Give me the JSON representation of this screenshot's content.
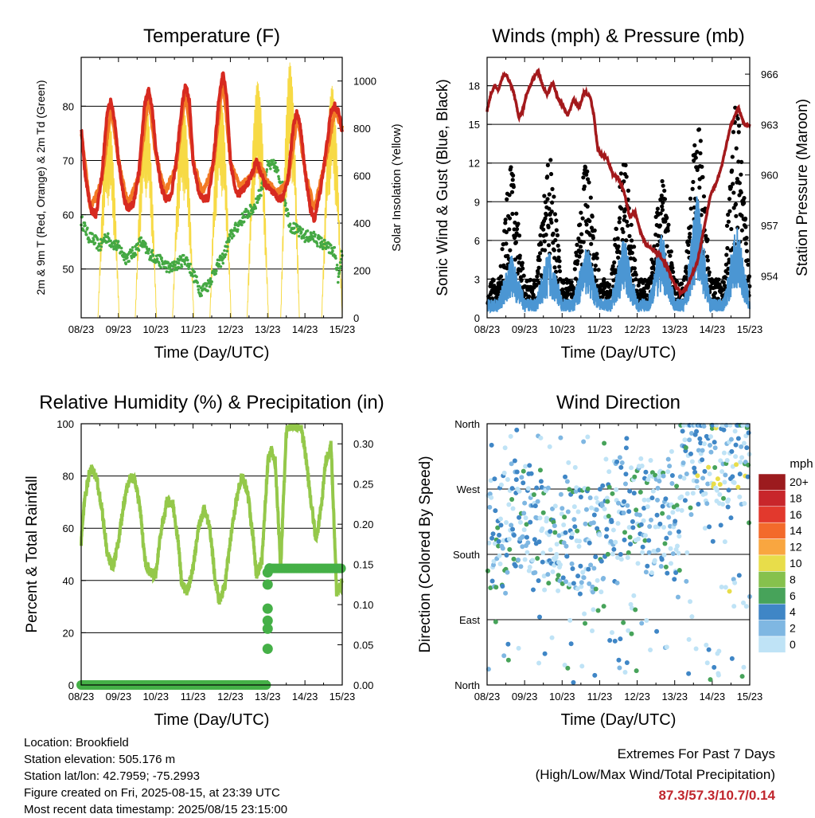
{
  "x_tick_labels": [
    "08/23",
    "09/23",
    "10/23",
    "11/23",
    "12/23",
    "13/23",
    "14/23",
    "15/23"
  ],
  "colors": {
    "temp_red": "#d72a20",
    "temp_orange": "#f27a25",
    "dewpoint_green": "#44a843",
    "solar_yellow": "#f7da45",
    "wind_blue": "#4b96d3",
    "gust_black": "#000000",
    "pressure_maroon": "#a3191c",
    "rh_green": "#94c84a",
    "precip_green": "#45b047"
  },
  "charts": [
    {
      "id": "temperature",
      "type": "line",
      "title": "Temperature (F)",
      "xlabel": "Time (Day/UTC)",
      "ylabel": "2m & 9m T (Red, Orange) & 2m Td (Green)",
      "y2label": "Solar Insolation (Yellow)",
      "ylim": [
        41,
        89
      ],
      "y_ticks": [
        "50",
        "60",
        "70",
        "80"
      ],
      "y2lim": [
        0,
        1100
      ],
      "y2_ticks": [
        "0",
        "200",
        "400",
        "600",
        "800",
        "1000"
      ],
      "grid": true,
      "chart_data": {
        "type": "line",
        "x_unit": "days since 08/23 00 UTC",
        "series": [
          {
            "key": "t2m",
            "x": [
              0,
              0.1,
              0.25,
              0.4,
              0.55,
              0.7,
              0.8,
              0.9,
              1.0,
              1.15,
              1.25,
              1.4,
              1.55,
              1.7,
              1.8,
              1.9,
              2.0,
              2.15,
              2.25,
              2.4,
              2.55,
              2.7,
              2.8,
              2.9,
              3.0,
              3.15,
              3.25,
              3.4,
              3.55,
              3.7,
              3.8,
              3.9,
              4.0,
              4.15,
              4.25,
              4.4,
              4.55,
              4.7,
              4.8,
              4.9,
              5.0,
              5.15,
              5.25,
              5.4,
              5.55,
              5.7,
              5.8,
              5.9,
              6.0,
              6.15,
              6.25,
              6.4,
              6.55,
              6.7,
              6.8,
              6.9,
              7.0
            ],
            "y": [
              76,
              68,
              61,
              60,
              67,
              79,
              81,
              77,
              70,
              63,
              61,
              62,
              68,
              80,
              83,
              80,
              72,
              65,
              63,
              63,
              70,
              80,
              84,
              81,
              70,
              64,
              63,
              63,
              70,
              82,
              86,
              82,
              70,
              64,
              64,
              65,
              67,
              70,
              68,
              66,
              65,
              64,
              63,
              63,
              67,
              77,
              79,
              75,
              68,
              61,
              59,
              64,
              71,
              79,
              80,
              79,
              75
            ]
          },
          {
            "key": "t9m",
            "x": [
              0,
              0.25,
              0.55,
              0.8,
              1.0,
              1.25,
              1.55,
              1.8,
              2.0,
              2.25,
              2.55,
              2.8,
              3.0,
              3.25,
              3.55,
              3.8,
              4.0,
              4.25,
              4.55,
              4.8,
              5.0,
              5.25,
              5.55,
              5.8,
              6.0,
              6.25,
              6.55,
              6.8,
              7.0
            ],
            "y": [
              75,
              61,
              66,
              80,
              70,
              62,
              67,
              82,
              71,
              64,
              69,
              83,
              70,
              64,
              69,
              85,
              70,
              65,
              67,
              69,
              66,
              64,
              66,
              78,
              68,
              61,
              70,
              79,
              76
            ]
          },
          {
            "key": "td2m",
            "x": [
              0,
              0.2,
              0.4,
              0.5,
              0.65,
              0.8,
              1.0,
              1.2,
              1.4,
              1.6,
              1.8,
              2.0,
              2.2,
              2.4,
              2.6,
              2.8,
              3.0,
              3.2,
              3.4,
              3.6,
              3.8,
              4.0,
              4.2,
              4.4,
              4.6,
              4.8,
              5.0,
              5.2,
              5.4,
              5.6,
              5.8,
              6.0,
              6.2,
              6.4,
              6.6,
              6.8,
              6.9,
              7.0
            ],
            "y": [
              59,
              56,
              55,
              54,
              56,
              55,
              54,
              52,
              53,
              55,
              53,
              52,
              51,
              50,
              51,
              52,
              49,
              46,
              47,
              50,
              52,
              56,
              58,
              60,
              61,
              64,
              69,
              69,
              65,
              58,
              57,
              56,
              56,
              55,
              54,
              53,
              48,
              53
            ]
          },
          {
            "key": "solar",
            "axis": "y2",
            "peaks": [
              {
                "rise": 0.45,
                "noon": 0.72,
                "set": 1.02,
                "peak": 860
              },
              {
                "rise": 1.45,
                "noon": 1.72,
                "set": 2.02,
                "peak": 920
              },
              {
                "rise": 2.45,
                "noon": 2.72,
                "set": 3.02,
                "peak": 900
              },
              {
                "rise": 3.45,
                "noon": 3.72,
                "set": 4.02,
                "peak": 940
              },
              {
                "rise": 4.45,
                "noon": 4.72,
                "set": 5.02,
                "peak": 1000
              },
              {
                "rise": 5.35,
                "noon": 5.55,
                "set": 5.85,
                "peak": 1080
              },
              {
                "rise": 6.45,
                "noon": 6.72,
                "set": 7.0,
                "peak": 980
              }
            ]
          }
        ]
      }
    },
    {
      "id": "winds",
      "type": "scatter",
      "title": "Winds (mph) & Pressure (mb)",
      "xlabel": "Time (Day/UTC)",
      "ylabel": "Sonic Wind & Gust (Blue, Black)",
      "y2label": "Station Pressure (Maroon)",
      "ylim": [
        0,
        20.2
      ],
      "y_ticks": [
        "0",
        "3",
        "6",
        "9",
        "12",
        "15",
        "18"
      ],
      "y2lim": [
        951.5,
        967.0
      ],
      "y2_ticks": [
        "954",
        "957",
        "960",
        "963",
        "966"
      ],
      "grid": true,
      "chart_data": {
        "type": "scatter",
        "series": [
          {
            "key": "pressure",
            "axis": "y2",
            "x": [
              0,
              0.1,
              0.2,
              0.3,
              0.45,
              0.55,
              0.7,
              0.85,
              0.95,
              1.05,
              1.2,
              1.35,
              1.5,
              1.6,
              1.75,
              1.9,
              2.0,
              2.15,
              2.3,
              2.45,
              2.6,
              2.75,
              2.85,
              2.95,
              3.05,
              3.2,
              3.35,
              3.5,
              3.65,
              3.8,
              3.95,
              4.1,
              4.25,
              4.4,
              4.6,
              4.8,
              5.0,
              5.15,
              5.3,
              5.45,
              5.6,
              5.8,
              5.95,
              6.1,
              6.25,
              6.4,
              6.5,
              6.6,
              6.7,
              6.85,
              7.0
            ],
            "y": [
              963.8,
              964.8,
              965.3,
              965.1,
              966.0,
              965.8,
              965.0,
              963.4,
              963.8,
              964.8,
              965.6,
              966.2,
              965.2,
              964.8,
              965.5,
              964.5,
              964.2,
              963.5,
              964.5,
              964.0,
              965.0,
              964.6,
              963.5,
              961.5,
              961.2,
              961.0,
              960.0,
              959.8,
              959.0,
              957.5,
              957.8,
              956.5,
              955.8,
              955.6,
              955.2,
              954.5,
              953.5,
              953.0,
              953.2,
              954.0,
              954.8,
              957.0,
              958.8,
              959.5,
              960.5,
              962.0,
              963.0,
              963.5,
              964.0,
              963.0,
              963.0
            ]
          },
          {
            "key": "wind",
            "daily_peak_x": [
              0.65,
              1.65,
              2.65,
              3.65,
              4.65,
              5.6,
              6.65
            ],
            "daily_peak_y": [
              5.0,
              5.5,
              6.0,
              6.5,
              7.0,
              10.0,
              7.5
            ],
            "base": 1.5
          },
          {
            "key": "gust",
            "daily_peak_x": [
              0.65,
              1.65,
              2.65,
              3.65,
              4.65,
              5.6,
              6.65
            ],
            "daily_peak_y": [
              12.7,
              13.8,
              13.5,
              13.6,
              12.0,
              17.8,
              18.2
            ],
            "base": 3.0
          }
        ]
      }
    },
    {
      "id": "rh",
      "type": "line",
      "title": "Relative Humidity (%) & Precipitation (in)",
      "xlabel": "Time (Day/UTC)",
      "ylabel": "Percent & Total Rainfall",
      "ylim": [
        0,
        100
      ],
      "y_ticks": [
        "0",
        "20",
        "40",
        "60",
        "80",
        "100"
      ],
      "y2lim": [
        0,
        0.325
      ],
      "y2_ticks": [
        "0.00",
        "0.05",
        "0.10",
        "0.15",
        "0.20",
        "0.25",
        "0.30"
      ],
      "grid": true,
      "chart_data": {
        "type": "line",
        "series": [
          {
            "key": "rh",
            "x": [
              0,
              0.1,
              0.25,
              0.4,
              0.55,
              0.7,
              0.85,
              1.0,
              1.15,
              1.3,
              1.45,
              1.6,
              1.7,
              1.85,
              2.0,
              2.15,
              2.3,
              2.45,
              2.6,
              2.7,
              2.85,
              3.0,
              3.15,
              3.3,
              3.45,
              3.6,
              3.7,
              3.85,
              4.0,
              4.15,
              4.3,
              4.45,
              4.6,
              4.7,
              4.85,
              5.0,
              5.1,
              5.2,
              5.35,
              5.5,
              5.6,
              5.75,
              5.9,
              6.0,
              6.15,
              6.3,
              6.45,
              6.55,
              6.7,
              6.85,
              7.0
            ],
            "y": [
              55,
              72,
              83,
              80,
              68,
              50,
              45,
              55,
              70,
              80,
              78,
              65,
              48,
              43,
              42,
              60,
              70,
              70,
              55,
              38,
              36,
              45,
              60,
              68,
              60,
              40,
              32,
              38,
              55,
              70,
              80,
              75,
              58,
              42,
              48,
              85,
              90,
              86,
              45,
              97,
              99,
              99,
              99,
              90,
              72,
              55,
              70,
              85,
              92,
              35,
              40
            ]
          },
          {
            "key": "precip",
            "axis": "y2",
            "x": [
              0,
              1,
              2,
              3,
              4,
              5,
              5.0,
              5.0,
              5.0,
              5.0,
              5.0,
              5.0,
              5.05,
              6,
              7
            ],
            "y": [
              0,
              0,
              0,
              0,
              0,
              0,
              0.045,
              0.07,
              0.08,
              0.095,
              0.125,
              0.14,
              0.145,
              0.145,
              0.145
            ]
          }
        ]
      }
    },
    {
      "id": "wind_direction",
      "type": "scatter",
      "title": "Wind Direction",
      "xlabel": "Time (Day/UTC)",
      "ylabel": "Direction (Colored By Speed)",
      "y_ticks": [
        "North",
        "East",
        "South",
        "West",
        "North"
      ],
      "ylim": [
        0,
        360
      ],
      "grid": true,
      "legend": {
        "title": "mph",
        "labels": [
          "20+",
          "18",
          "16",
          "14",
          "12",
          "10",
          "8",
          "6",
          "4",
          "2",
          "0"
        ],
        "colors": [
          "#9c1b1e",
          "#c8262b",
          "#e2392d",
          "#f36a2b",
          "#f9a640",
          "#e8dd4a",
          "#86c14d",
          "#47a35a",
          "#3f86c6",
          "#7fb7e2",
          "#bfe3f6"
        ]
      },
      "chart_data": {
        "type": "scatter",
        "note_clusters": [
          {
            "day": 0.3,
            "dir": 200
          },
          {
            "day": 0.8,
            "dir": 230
          },
          {
            "day": 1.6,
            "dir": 200
          },
          {
            "day": 2.6,
            "dir": 200
          },
          {
            "day": 3.7,
            "dir": 240
          },
          {
            "day": 4.7,
            "dir": 220
          },
          {
            "day": 5.6,
            "dir": 320
          },
          {
            "day": 6.6,
            "dir": 320
          }
        ]
      }
    }
  ],
  "footer": {
    "location": "Location: Brookfield",
    "elevation": "Station elevation: 505.176 m",
    "latlon": "Station lat/lon: 42.7959; -75.2993",
    "created": "Figure created on Fri, 2025-08-15, at 23:39 UTC",
    "recent": "Most recent data timestamp: 2025/08/15 23:15:00"
  },
  "extremes": {
    "line1": "Extremes For Past 7 Days",
    "line2": "(High/Low/Max Wind/Total Precipitation)",
    "values": "87.3/57.3/10.7/0.14"
  }
}
